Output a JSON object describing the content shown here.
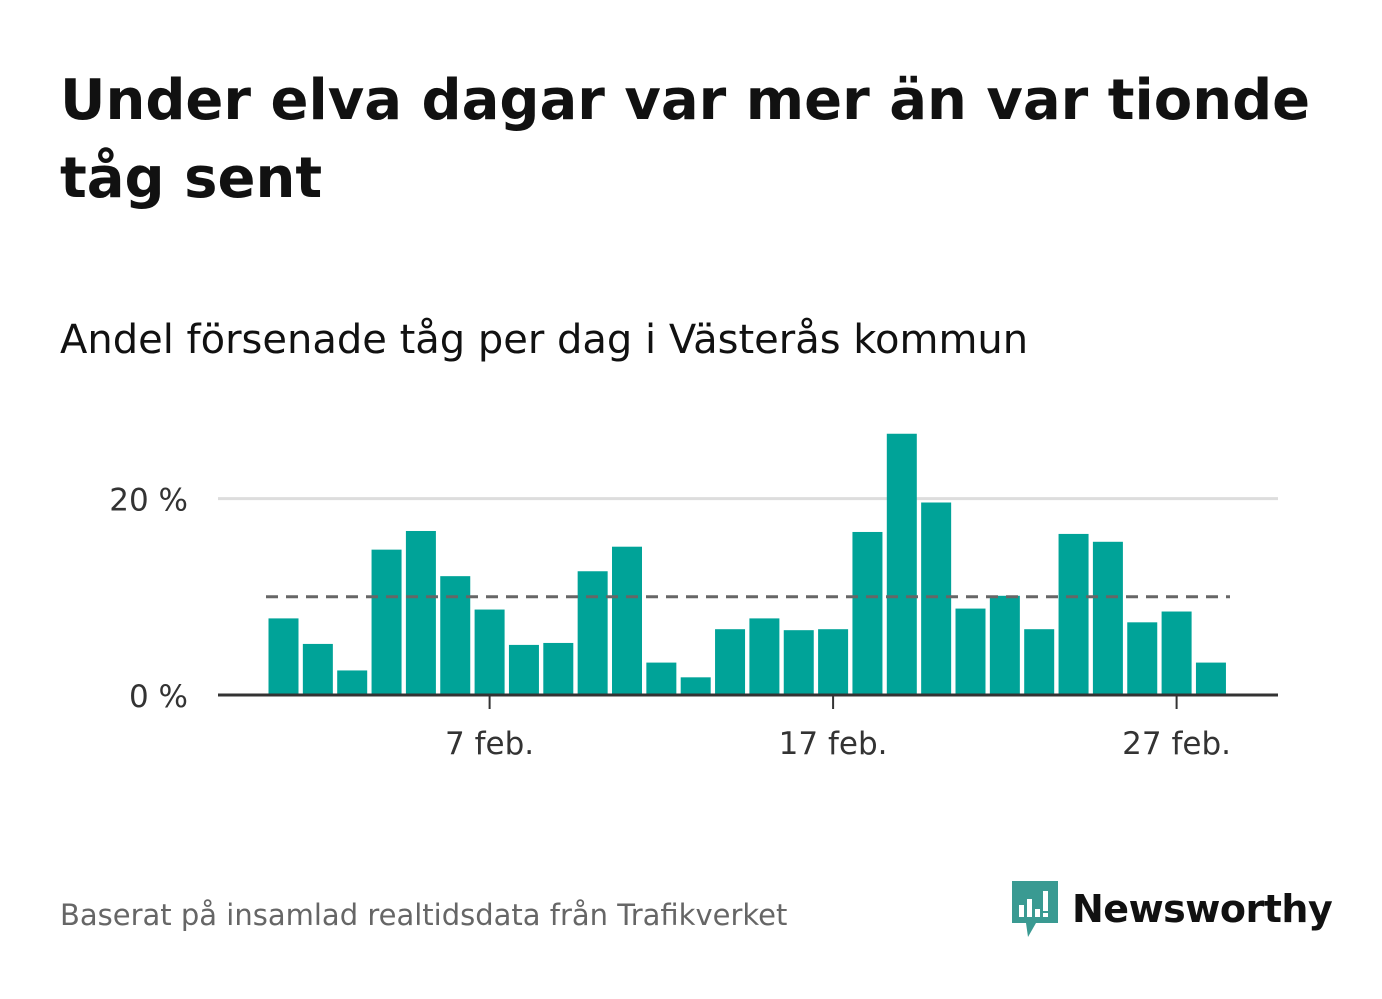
{
  "title": "Under elva dagar var mer än var tionde tåg sent",
  "subtitle": "Andel försenade tåg per dag i Västerås kommun",
  "source": "Baserat på insamlad realtidsdata från Trafikverket",
  "brand": {
    "name": "Newsworthy",
    "color": "#3a9a92",
    "icon": "newsworthy-chart-icon"
  },
  "colors": {
    "bar": "#00a398",
    "reference_line": "#666666",
    "grid": "#dddddd",
    "axis": "#333333"
  },
  "chart_data": {
    "type": "bar",
    "x": [
      "2024-02-01",
      "2024-02-02",
      "2024-02-03",
      "2024-02-04",
      "2024-02-05",
      "2024-02-06",
      "2024-02-07",
      "2024-02-08",
      "2024-02-09",
      "2024-02-10",
      "2024-02-11",
      "2024-02-12",
      "2024-02-13",
      "2024-02-14",
      "2024-02-15",
      "2024-02-16",
      "2024-02-17",
      "2024-02-18",
      "2024-02-19",
      "2024-02-20",
      "2024-02-21",
      "2024-02-22",
      "2024-02-23",
      "2024-02-24",
      "2024-02-25",
      "2024-02-26",
      "2024-02-27",
      "2024-02-28"
    ],
    "values": [
      7.8,
      5.2,
      2.5,
      14.8,
      16.7,
      12.1,
      8.7,
      5.1,
      5.3,
      12.6,
      15.1,
      3.3,
      1.8,
      6.7,
      7.8,
      6.6,
      6.7,
      16.6,
      26.6,
      19.6,
      8.8,
      10.1,
      6.7,
      16.4,
      15.6,
      7.4,
      8.5,
      3.3
    ],
    "reference_line": 10,
    "ylim": [
      0,
      28
    ],
    "y_ticks": [
      0,
      20
    ],
    "y_tick_labels": [
      "0 %",
      "20 %"
    ],
    "x_ticks": [
      "2024-02-07",
      "2024-02-17",
      "2024-02-27"
    ],
    "x_tick_labels": [
      "7 feb.",
      "17 feb.",
      "27 feb."
    ],
    "grid": true,
    "xlabel": "",
    "ylabel": ""
  }
}
